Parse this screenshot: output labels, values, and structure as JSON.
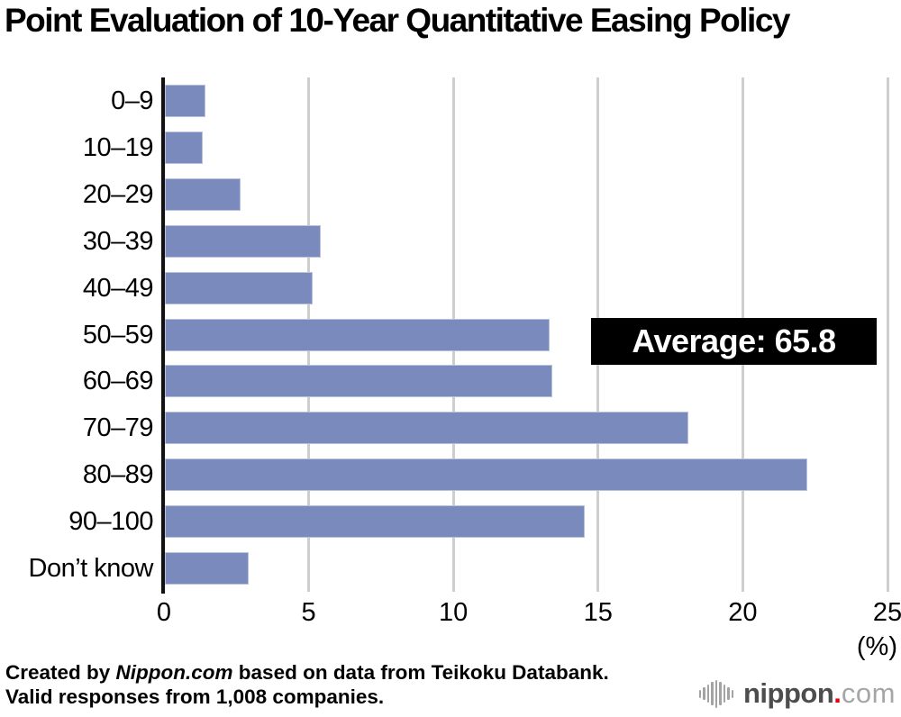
{
  "title": "Point Evaluation of 10-Year Quantitative Easing Policy",
  "chart_data": {
    "type": "bar",
    "orientation": "horizontal",
    "title": "Point Evaluation of 10-Year Quantitative Easing Policy",
    "categories": [
      "0–9",
      "10–19",
      "20–29",
      "30–39",
      "40–49",
      "50–59",
      "60–69",
      "70–79",
      "80–89",
      "90–100",
      "Don’t know"
    ],
    "values": [
      1.4,
      1.3,
      2.6,
      5.4,
      5.1,
      13.3,
      13.4,
      18.1,
      22.2,
      14.5,
      2.9
    ],
    "xlabel": "(%)",
    "xlim": [
      0,
      25
    ],
    "xticks": [
      0,
      5,
      10,
      15,
      20,
      25
    ],
    "grid": true,
    "legend": "none",
    "annotation": "Average: 65.8",
    "bar_color": "#7b8abc",
    "gridline_color": "#cecece",
    "axis_color": "#111111"
  },
  "annotation": {
    "label": "Average: 65.8"
  },
  "axis": {
    "unit_label": "(%)"
  },
  "footer": {
    "line1_prefix": "Created by ",
    "line1_source": "Nippon.com",
    "line1_suffix": " based on data from Teikoku Databank.",
    "line2": "Valid responses from 1,008 companies."
  },
  "logo": {
    "icon": "soundwave-icon",
    "name": "nippon",
    "dot": ".",
    "tld": "com",
    "dot_color": "#e60012"
  }
}
